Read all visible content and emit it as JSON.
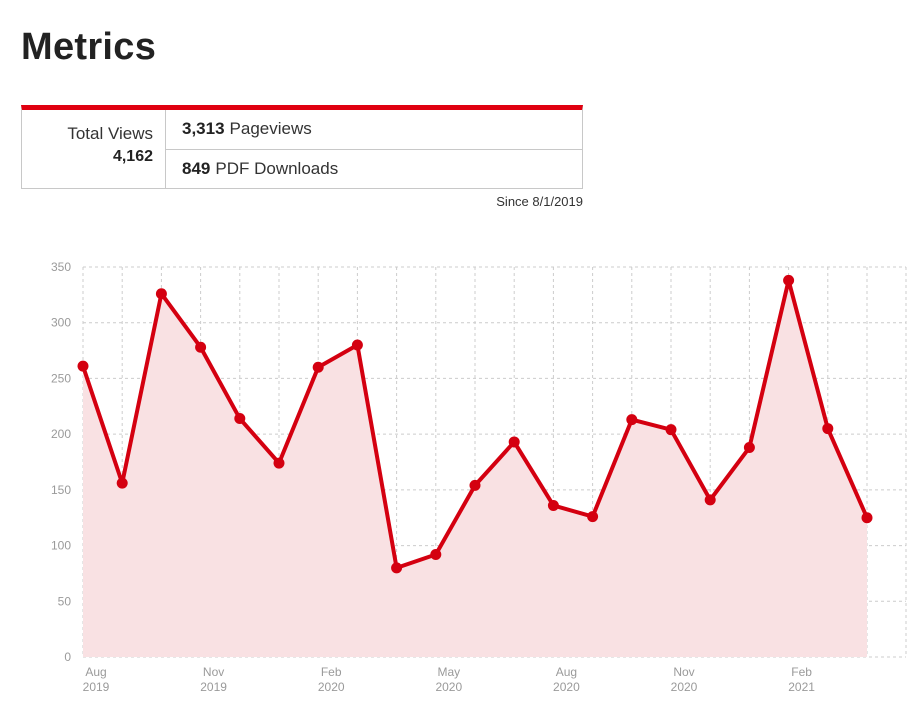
{
  "page": {
    "title": "Metrics"
  },
  "metrics": {
    "total_label": "Total Views",
    "total_value": "4,162",
    "pageviews_value": "3,313",
    "pageviews_label": "Pageviews",
    "downloads_value": "849",
    "downloads_label": "PDF Downloads",
    "since": "Since 8/1/2019"
  },
  "colors": {
    "accent": "#e00010",
    "line": "#d40010",
    "area": "#f9e1e3",
    "grid": "#cccccc"
  },
  "chart_data": {
    "type": "area",
    "title": "",
    "xlabel": "",
    "ylabel": "",
    "ylim": [
      0,
      350
    ],
    "yticks": [
      0,
      50,
      100,
      150,
      200,
      250,
      300,
      350
    ],
    "grid": true,
    "x": [
      "Aug 2019",
      "Sep 2019",
      "Oct 2019",
      "Nov 2019",
      "Dec 2019",
      "Jan 2020",
      "Feb 2020",
      "Mar 2020",
      "Apr 2020",
      "May 2020",
      "Jun 2020",
      "Jul 2020",
      "Aug 2020",
      "Sep 2020",
      "Oct 2020",
      "Nov 2020",
      "Dec 2020",
      "Jan 2021",
      "Feb 2021",
      "Mar 2021",
      "Apr 2021"
    ],
    "x_tick_labels": [
      {
        "index": 0,
        "month": "Aug",
        "year": "2019"
      },
      {
        "index": 3,
        "month": "Nov",
        "year": "2019"
      },
      {
        "index": 6,
        "month": "Feb",
        "year": "2020"
      },
      {
        "index": 9,
        "month": "May",
        "year": "2020"
      },
      {
        "index": 12,
        "month": "Aug",
        "year": "2020"
      },
      {
        "index": 15,
        "month": "Nov",
        "year": "2020"
      },
      {
        "index": 18,
        "month": "Feb",
        "year": "2021"
      }
    ],
    "values": [
      261,
      156,
      326,
      278,
      214,
      174,
      260,
      280,
      80,
      92,
      154,
      193,
      136,
      126,
      213,
      204,
      141,
      188,
      338,
      205,
      125
    ]
  }
}
